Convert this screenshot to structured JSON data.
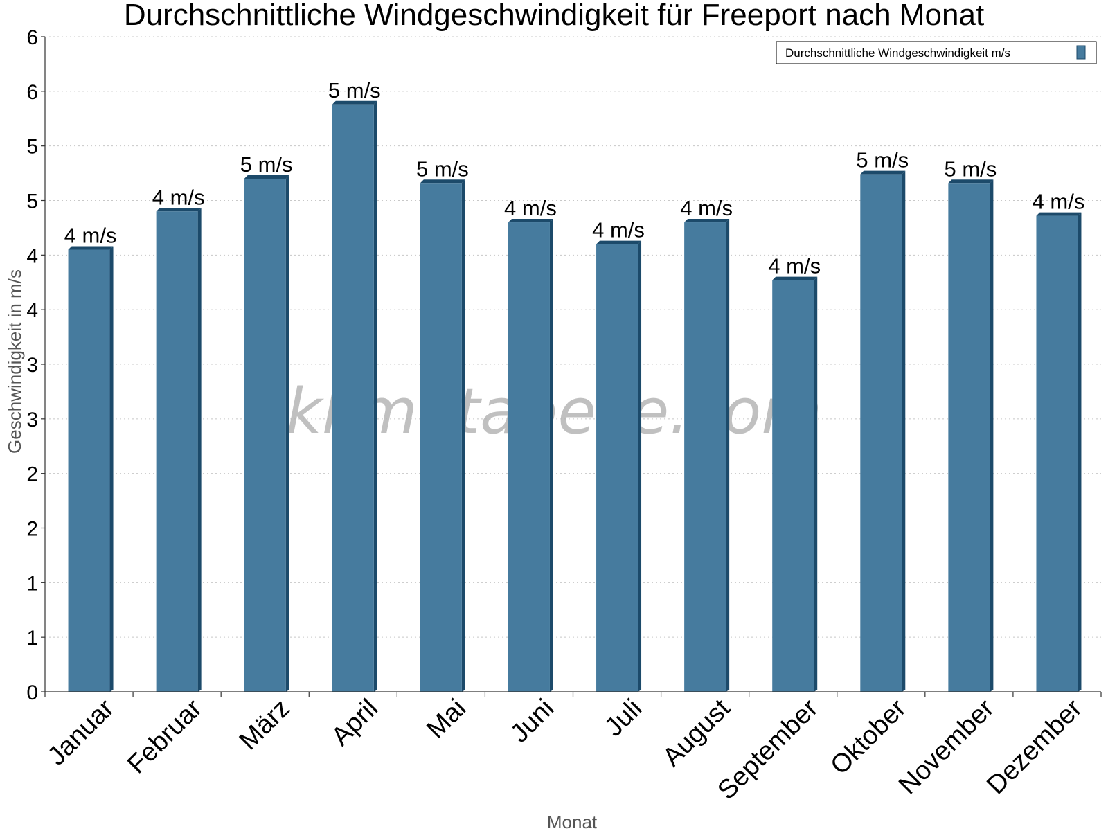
{
  "chart_data": {
    "type": "bar",
    "title": "Durchschnittliche Windgeschwindigkeit für Freeport nach Monat",
    "xlabel": "Monat",
    "ylabel": "Geschwindigkeit in m/s",
    "categories": [
      "Januar",
      "Februar",
      "März",
      "April",
      "Mai",
      "Juni",
      "Juli",
      "August",
      "September",
      "Oktober",
      "November",
      "Dezember"
    ],
    "series": [
      {
        "name": "Durchschnittliche Windgeschwindigkeit m/s",
        "color": "#467b9e",
        "values": [
          4.05,
          4.4,
          4.7,
          5.38,
          4.66,
          4.3,
          4.1,
          4.3,
          3.77,
          4.74,
          4.66,
          4.36
        ],
        "labels": [
          "4 m/s",
          "4 m/s",
          "5 m/s",
          "5 m/s",
          "5 m/s",
          "4 m/s",
          "4 m/s",
          "4 m/s",
          "4 m/s",
          "5 m/s",
          "5 m/s",
          "4 m/s"
        ]
      }
    ],
    "yticks": [
      0,
      0.5,
      1,
      1.5,
      2,
      2.5,
      3,
      3.5,
      4,
      4.5,
      5,
      5.5,
      6
    ],
    "ytick_labels": [
      "0",
      "1",
      "1",
      "2",
      "2",
      "3",
      "3",
      "4",
      "4",
      "5",
      "5",
      "6",
      "6"
    ],
    "ylim": [
      0,
      6
    ],
    "grid": true,
    "legend_position": "top-right",
    "watermark": "klimatabelle.com"
  }
}
